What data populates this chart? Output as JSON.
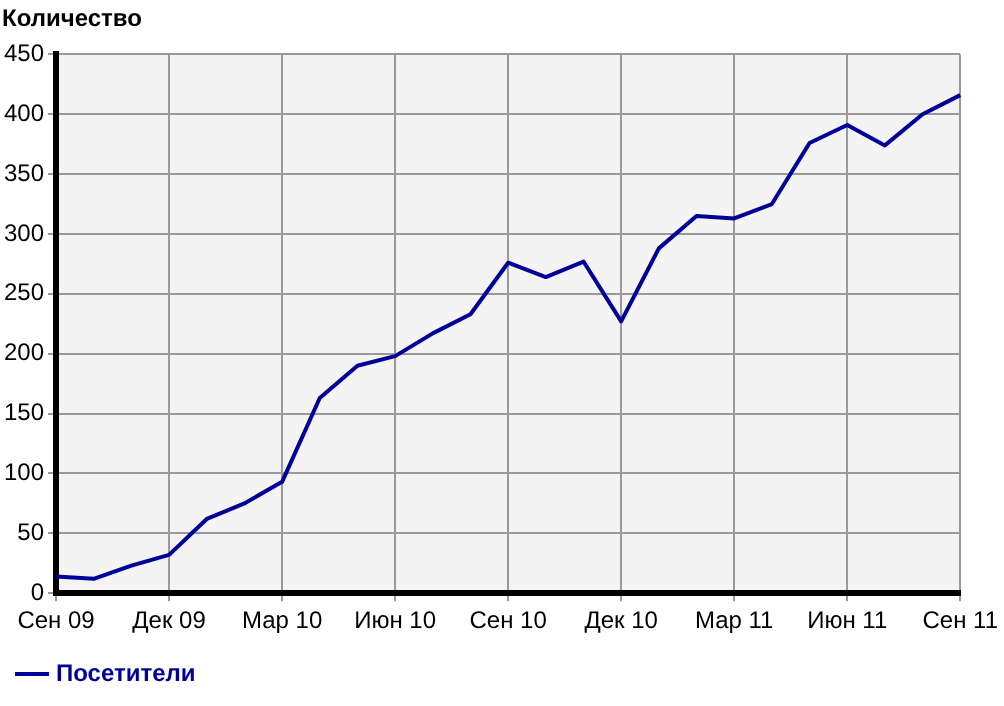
{
  "chart_data": {
    "type": "line",
    "ylabel": "Количество",
    "categories": [
      "Сен 09",
      null,
      null,
      "Дек 09",
      null,
      null,
      "Мар 10",
      null,
      null,
      "Июн 10",
      null,
      null,
      "Сен 10",
      null,
      null,
      "Дек 10",
      null,
      null,
      "Мар 11",
      null,
      null,
      "Июн 11",
      null,
      null,
      "Сен 11"
    ],
    "series": [
      {
        "name": "Посетители",
        "color": "#000099",
        "values": [
          14,
          12,
          23,
          32,
          62,
          75,
          93,
          163,
          190,
          198,
          217,
          233,
          276,
          264,
          277,
          227,
          288,
          315,
          313,
          325,
          376,
          391,
          374,
          400,
          416
        ]
      }
    ],
    "ylim": [
      0,
      450
    ],
    "yticks": [
      0,
      50,
      100,
      150,
      200,
      250,
      300,
      350,
      400,
      450
    ],
    "grid": true,
    "legend": "bottom left",
    "marker": "none",
    "line_style": "solid"
  }
}
